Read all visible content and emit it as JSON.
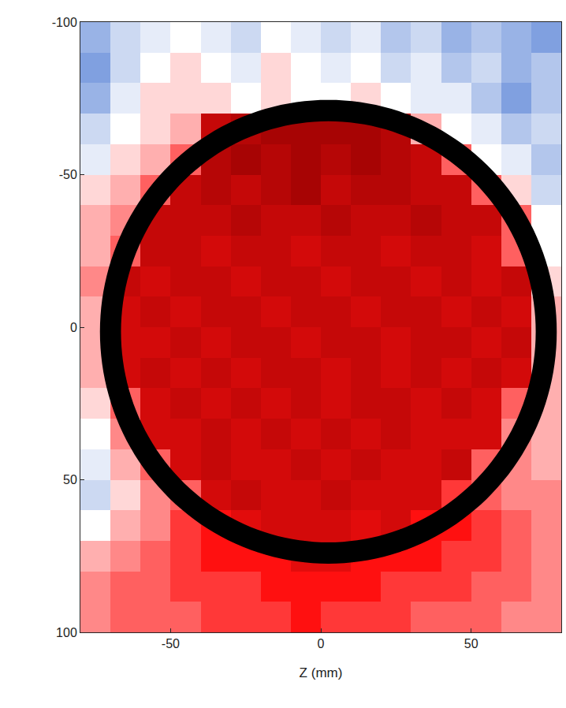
{
  "chart_data": {
    "type": "heatmap",
    "xlabel": "Z (mm)",
    "xlim": [
      -80,
      80
    ],
    "ylim": [
      100,
      -100
    ],
    "xticks": [
      -50,
      0,
      50
    ],
    "yticks": [
      -100,
      -50,
      0,
      50,
      100
    ],
    "zlim": [
      -1,
      1
    ],
    "ring": {
      "center": [
        2.5,
        1.5
      ],
      "inner_radius": 69,
      "outer_radius": 76
    },
    "x": [
      -75,
      -65,
      -55,
      -45,
      -35,
      -25,
      -15,
      -5,
      5,
      15,
      25,
      35,
      45,
      55,
      65,
      75
    ],
    "y": [
      -95,
      -85,
      -75,
      -65,
      -55,
      -45,
      -35,
      -25,
      -15,
      -5,
      5,
      15,
      25,
      35,
      45,
      55,
      65,
      75,
      85,
      95
    ],
    "z": [
      [
        -0.4,
        -0.2,
        -0.1,
        0.0,
        -0.1,
        -0.2,
        0.0,
        -0.1,
        -0.2,
        -0.1,
        -0.3,
        -0.2,
        -0.4,
        -0.3,
        -0.4,
        -0.5
      ],
      [
        -0.5,
        -0.2,
        0.0,
        0.1,
        0.0,
        -0.1,
        0.1,
        0.0,
        -0.1,
        0.0,
        -0.2,
        -0.1,
        -0.3,
        -0.2,
        -0.4,
        -0.3
      ],
      [
        -0.4,
        -0.1,
        0.1,
        0.1,
        0.1,
        0.0,
        0.1,
        0.0,
        0.0,
        0.1,
        0.0,
        -0.1,
        -0.1,
        -0.3,
        -0.5,
        -0.3
      ],
      [
        -0.2,
        0.0,
        0.1,
        0.2,
        0.8,
        0.85,
        0.9,
        0.9,
        0.9,
        0.9,
        0.85,
        0.2,
        0.0,
        -0.1,
        -0.3,
        -0.2
      ],
      [
        -0.1,
        0.1,
        0.2,
        0.4,
        0.85,
        0.9,
        0.85,
        0.9,
        0.85,
        0.9,
        0.85,
        0.8,
        0.4,
        0.0,
        -0.1,
        -0.3
      ],
      [
        0.1,
        0.2,
        0.4,
        0.8,
        0.85,
        0.8,
        0.85,
        0.9,
        0.8,
        0.85,
        0.85,
        0.8,
        0.8,
        0.4,
        0.1,
        -0.2
      ],
      [
        0.2,
        0.3,
        0.8,
        0.8,
        0.8,
        0.85,
        0.8,
        0.8,
        0.85,
        0.8,
        0.8,
        0.85,
        0.8,
        0.8,
        0.4,
        0.0
      ],
      [
        0.2,
        0.4,
        0.8,
        0.8,
        0.75,
        0.8,
        0.8,
        0.75,
        0.8,
        0.8,
        0.75,
        0.8,
        0.8,
        0.75,
        0.4,
        0.0
      ],
      [
        0.3,
        0.8,
        0.75,
        0.8,
        0.8,
        0.75,
        0.8,
        0.8,
        0.75,
        0.8,
        0.8,
        0.75,
        0.8,
        0.75,
        0.8,
        0.1
      ],
      [
        0.2,
        0.75,
        0.8,
        0.75,
        0.8,
        0.8,
        0.75,
        0.8,
        0.8,
        0.75,
        0.8,
        0.8,
        0.75,
        0.8,
        0.75,
        0.2
      ],
      [
        0.2,
        0.75,
        0.75,
        0.8,
        0.75,
        0.8,
        0.8,
        0.75,
        0.8,
        0.8,
        0.75,
        0.8,
        0.8,
        0.75,
        0.8,
        0.2
      ],
      [
        0.2,
        0.75,
        0.8,
        0.75,
        0.8,
        0.75,
        0.8,
        0.8,
        0.75,
        0.8,
        0.75,
        0.8,
        0.75,
        0.8,
        0.75,
        0.2
      ],
      [
        0.1,
        0.4,
        0.75,
        0.8,
        0.75,
        0.8,
        0.75,
        0.8,
        0.75,
        0.8,
        0.8,
        0.75,
        0.8,
        0.75,
        0.4,
        0.2
      ],
      [
        0.0,
        0.3,
        0.75,
        0.75,
        0.8,
        0.75,
        0.8,
        0.75,
        0.8,
        0.75,
        0.8,
        0.75,
        0.75,
        0.75,
        0.3,
        0.2
      ],
      [
        -0.1,
        0.2,
        0.4,
        0.75,
        0.8,
        0.75,
        0.75,
        0.8,
        0.75,
        0.8,
        0.75,
        0.75,
        0.8,
        0.4,
        0.3,
        0.2
      ],
      [
        -0.2,
        0.1,
        0.3,
        0.4,
        0.75,
        0.8,
        0.75,
        0.75,
        0.8,
        0.75,
        0.75,
        0.75,
        0.5,
        0.4,
        0.3,
        0.3
      ],
      [
        0.0,
        0.2,
        0.3,
        0.5,
        0.6,
        0.7,
        0.75,
        0.75,
        0.75,
        0.7,
        0.75,
        0.6,
        0.6,
        0.5,
        0.4,
        0.3
      ],
      [
        0.2,
        0.3,
        0.4,
        0.5,
        0.6,
        0.6,
        0.6,
        0.7,
        0.7,
        0.6,
        0.6,
        0.6,
        0.5,
        0.5,
        0.4,
        0.3
      ],
      [
        0.3,
        0.4,
        0.4,
        0.5,
        0.5,
        0.5,
        0.6,
        0.6,
        0.6,
        0.6,
        0.5,
        0.5,
        0.5,
        0.4,
        0.4,
        0.3
      ],
      [
        0.3,
        0.4,
        0.4,
        0.4,
        0.5,
        0.5,
        0.5,
        0.6,
        0.5,
        0.5,
        0.5,
        0.4,
        0.4,
        0.4,
        0.3,
        0.3
      ]
    ]
  }
}
